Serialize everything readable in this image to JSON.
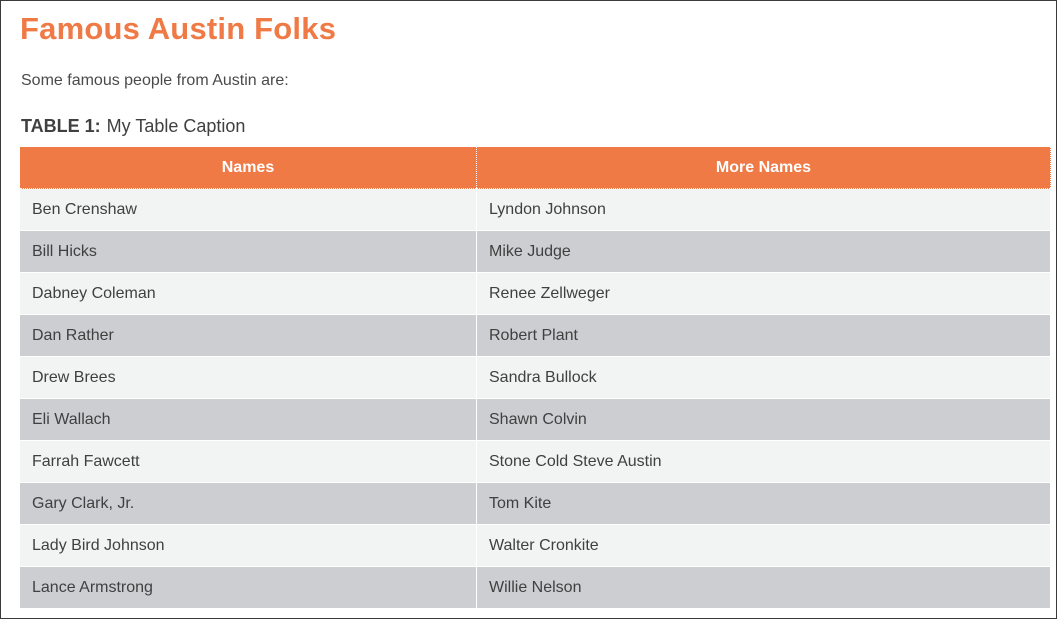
{
  "page": {
    "title": "Famous Austin Folks",
    "intro": "Some famous people from Austin are:",
    "caption_label": "TABLE 1:",
    "caption_text": "My Table Caption"
  },
  "table": {
    "headers": [
      "Names",
      "More Names"
    ],
    "rows": [
      [
        "Ben Crenshaw",
        "Lyndon Johnson"
      ],
      [
        "Bill Hicks",
        "Mike Judge"
      ],
      [
        "Dabney Coleman",
        "Renee Zellweger"
      ],
      [
        "Dan Rather",
        "Robert Plant"
      ],
      [
        "Drew Brees",
        "Sandra Bullock"
      ],
      [
        "Eli Wallach",
        "Shawn Colvin"
      ],
      [
        "Farrah Fawcett",
        "Stone Cold Steve Austin"
      ],
      [
        "Gary Clark, Jr.",
        "Tom Kite"
      ],
      [
        "Lady Bird Johnson",
        "Walter Cronkite"
      ],
      [
        "Lance Armstrong",
        "Willie Nelson"
      ]
    ]
  },
  "colors": {
    "accent": "#f07a46",
    "row_light": "#f2f3f3",
    "row_dark": "#ccced1",
    "spellcheck": "#d02020"
  }
}
